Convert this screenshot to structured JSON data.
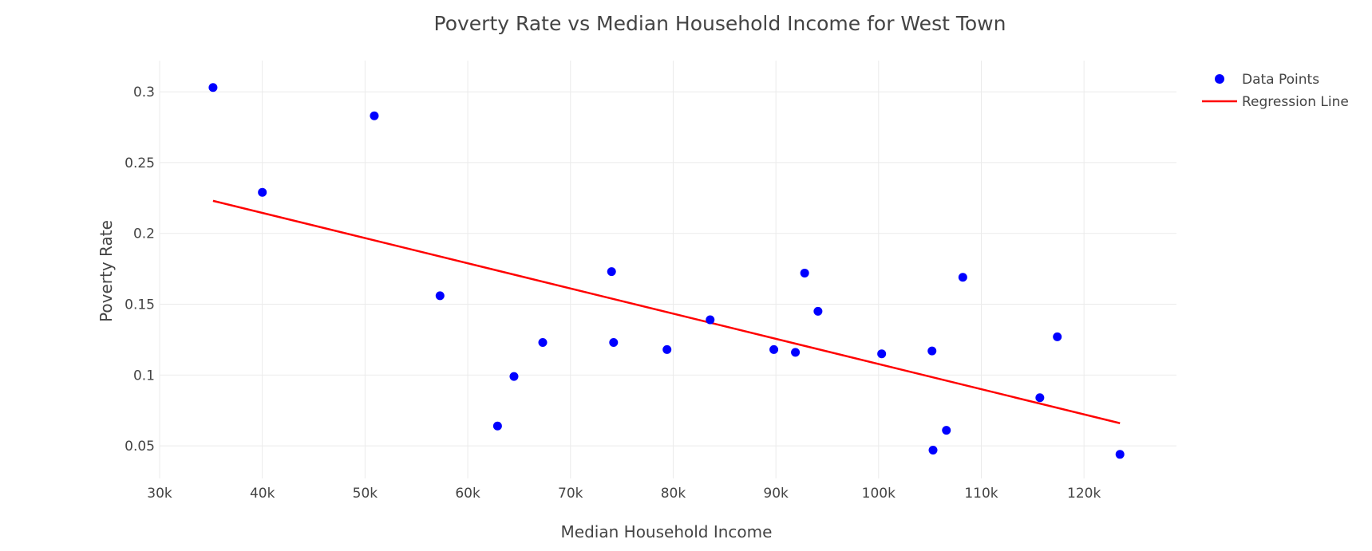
{
  "chart_data": {
    "type": "scatter",
    "title": "Poverty Rate vs Median Household Income for West Town",
    "xlabel": "Median Household Income",
    "ylabel": "Poverty Rate",
    "xlim": [
      30000,
      129000
    ],
    "ylim": [
      0.027,
      0.322
    ],
    "grid": true,
    "legend_position": "top-right",
    "x_ticks": [
      {
        "value": 30000,
        "label": "30k"
      },
      {
        "value": 40000,
        "label": "40k"
      },
      {
        "value": 50000,
        "label": "50k"
      },
      {
        "value": 60000,
        "label": "60k"
      },
      {
        "value": 70000,
        "label": "70k"
      },
      {
        "value": 80000,
        "label": "80k"
      },
      {
        "value": 90000,
        "label": "90k"
      },
      {
        "value": 100000,
        "label": "100k"
      },
      {
        "value": 110000,
        "label": "110k"
      },
      {
        "value": 120000,
        "label": "120k"
      }
    ],
    "y_ticks": [
      {
        "value": 0.05,
        "label": "0.05"
      },
      {
        "value": 0.1,
        "label": "0.1"
      },
      {
        "value": 0.15,
        "label": "0.15"
      },
      {
        "value": 0.2,
        "label": "0.2"
      },
      {
        "value": 0.25,
        "label": "0.25"
      },
      {
        "value": 0.3,
        "label": "0.3"
      }
    ],
    "series": [
      {
        "name": "Data Points",
        "type": "scatter",
        "color": "#0000ff",
        "points": [
          {
            "x": 35200,
            "y": 0.303
          },
          {
            "x": 40000,
            "y": 0.229
          },
          {
            "x": 50900,
            "y": 0.283
          },
          {
            "x": 57300,
            "y": 0.156
          },
          {
            "x": 62900,
            "y": 0.064
          },
          {
            "x": 64500,
            "y": 0.099
          },
          {
            "x": 67300,
            "y": 0.123
          },
          {
            "x": 74000,
            "y": 0.173
          },
          {
            "x": 74200,
            "y": 0.123
          },
          {
            "x": 79400,
            "y": 0.118
          },
          {
            "x": 83600,
            "y": 0.139
          },
          {
            "x": 89800,
            "y": 0.118
          },
          {
            "x": 91900,
            "y": 0.116
          },
          {
            "x": 92800,
            "y": 0.172
          },
          {
            "x": 94100,
            "y": 0.145
          },
          {
            "x": 100300,
            "y": 0.115
          },
          {
            "x": 105200,
            "y": 0.117
          },
          {
            "x": 105300,
            "y": 0.047
          },
          {
            "x": 106600,
            "y": 0.061
          },
          {
            "x": 108200,
            "y": 0.169
          },
          {
            "x": 115700,
            "y": 0.084
          },
          {
            "x": 117400,
            "y": 0.127
          },
          {
            "x": 123500,
            "y": 0.044
          }
        ]
      },
      {
        "name": "Regression Line",
        "type": "line",
        "color": "#ff0000",
        "points": [
          {
            "x": 35200,
            "y": 0.223
          },
          {
            "x": 123500,
            "y": 0.066
          }
        ]
      }
    ]
  }
}
